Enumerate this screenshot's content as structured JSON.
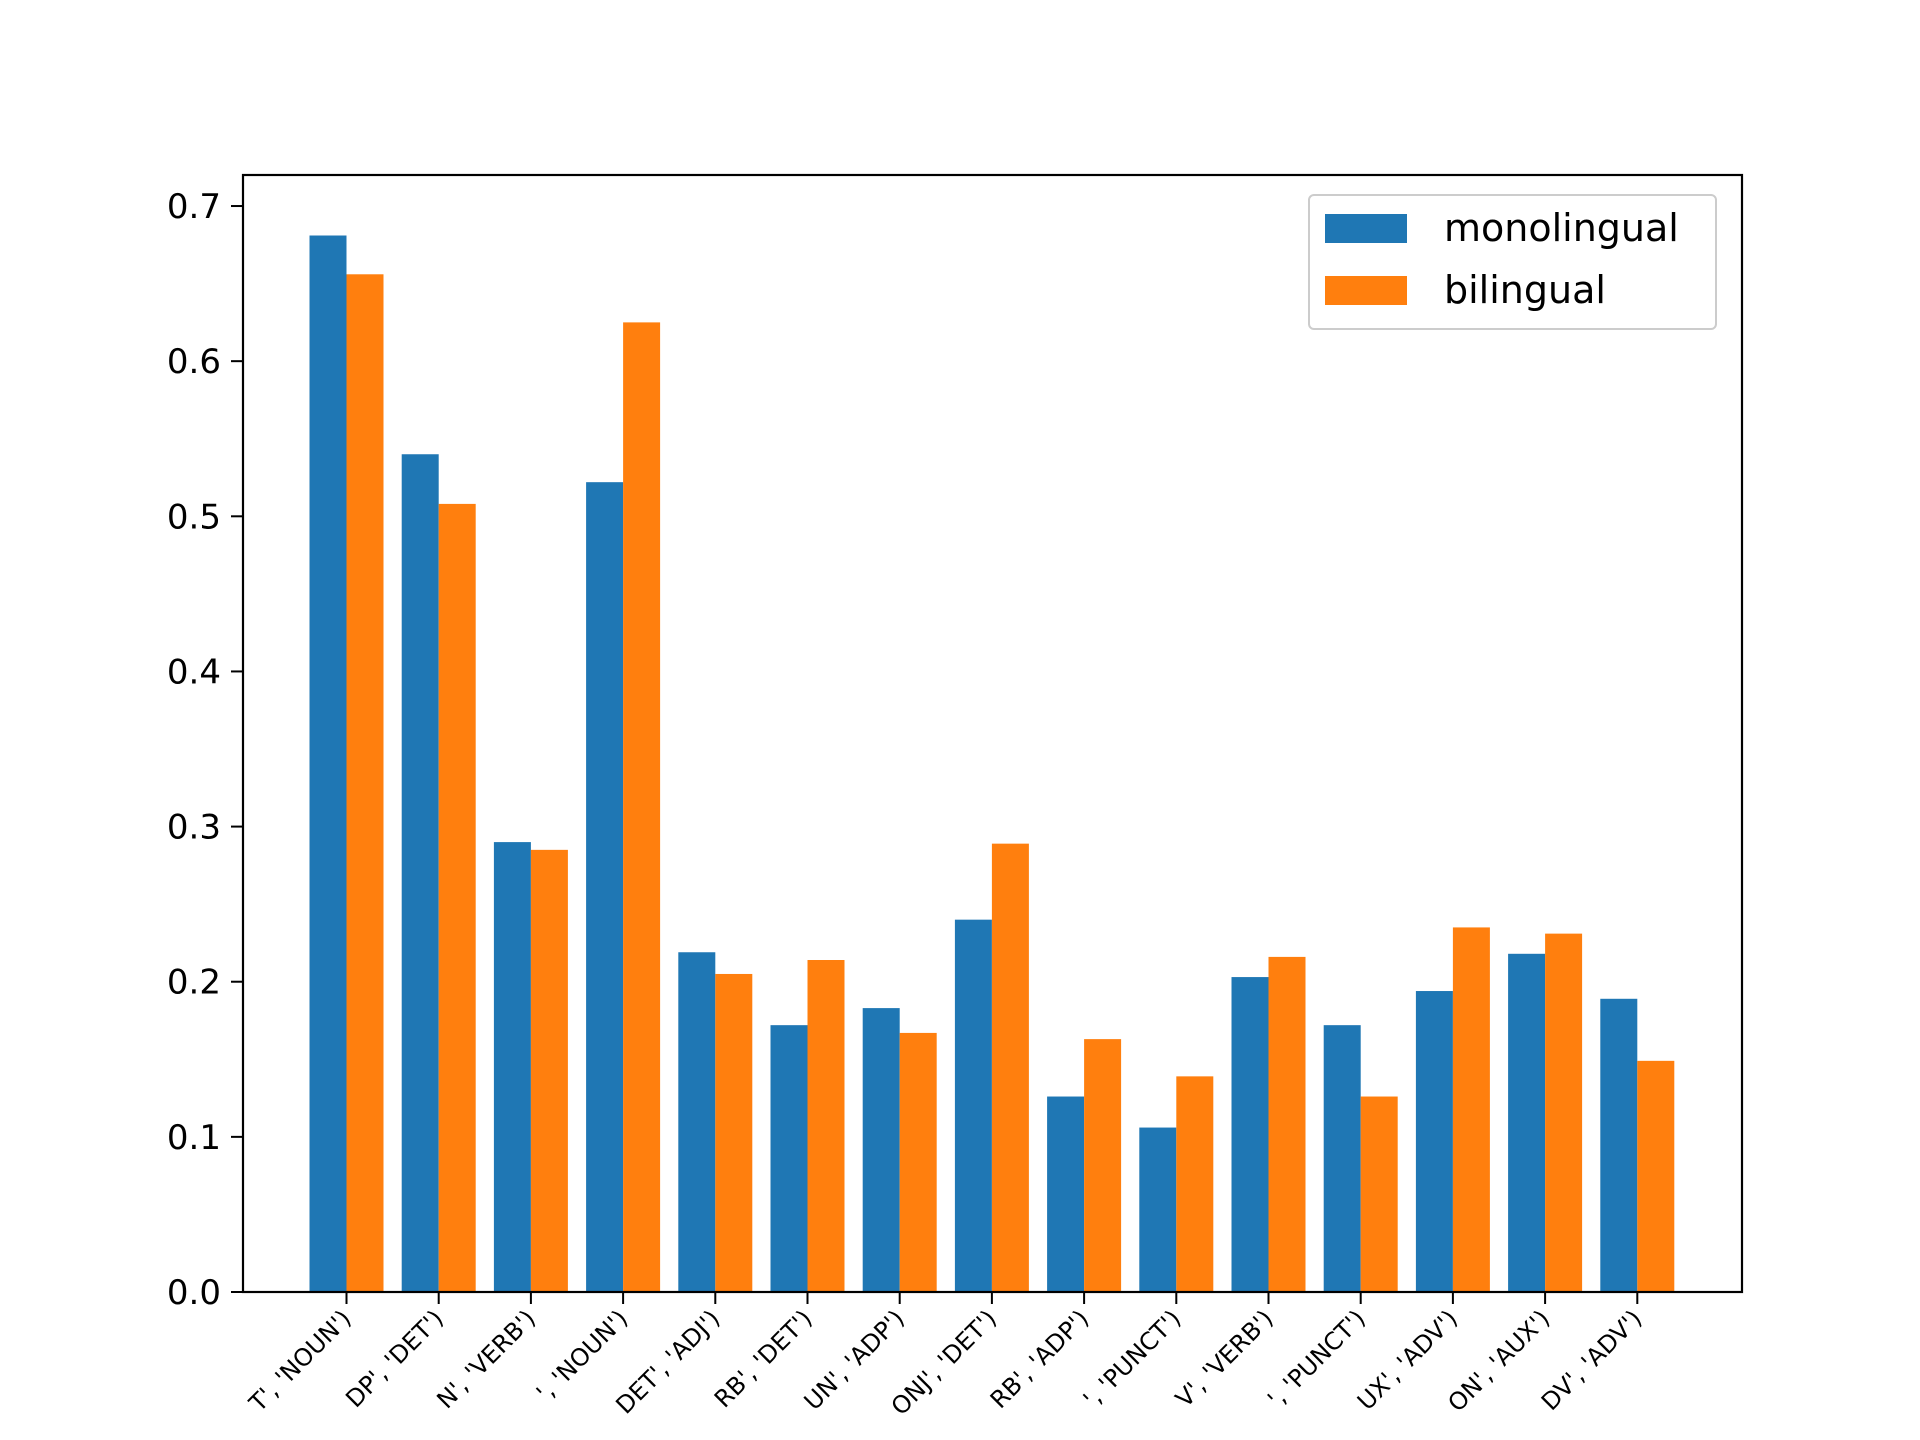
{
  "chart_data": {
    "type": "bar",
    "title": "",
    "xlabel": "",
    "ylabel": "",
    "ylim": [
      0,
      0.72
    ],
    "yticks": [
      0.0,
      0.1,
      0.2,
      0.3,
      0.4,
      0.5,
      0.6,
      0.7
    ],
    "ytick_labels": [
      "0.0",
      "0.1",
      "0.2",
      "0.3",
      "0.4",
      "0.5",
      "0.6",
      "0.7"
    ],
    "categories": [
      "T', 'NOUN')",
      "DP', 'DET')",
      "N', 'VERB')",
      "', 'NOUN')",
      "DET', 'ADJ')",
      "RB', 'DET')",
      "UN', 'ADP')",
      "ONJ', 'DET')",
      "RB', 'ADP')",
      "', 'PUNCT')",
      "V', 'VERB')",
      "', 'PUNCT')",
      "UX', 'ADV')",
      "ON', 'AUX')",
      "DV', 'ADV')"
    ],
    "series": [
      {
        "name": "monolingual",
        "color": "#1f77b4",
        "values": [
          0.681,
          0.54,
          0.29,
          0.522,
          0.219,
          0.172,
          0.183,
          0.24,
          0.126,
          0.106,
          0.203,
          0.172,
          0.194,
          0.218,
          0.189
        ]
      },
      {
        "name": "bilingual",
        "color": "#ff7f0e",
        "values": [
          0.656,
          0.508,
          0.285,
          0.625,
          0.205,
          0.214,
          0.167,
          0.289,
          0.163,
          0.139,
          0.216,
          0.126,
          0.235,
          0.231,
          0.149
        ]
      }
    ],
    "legend_position": "top-right",
    "grid": false
  }
}
